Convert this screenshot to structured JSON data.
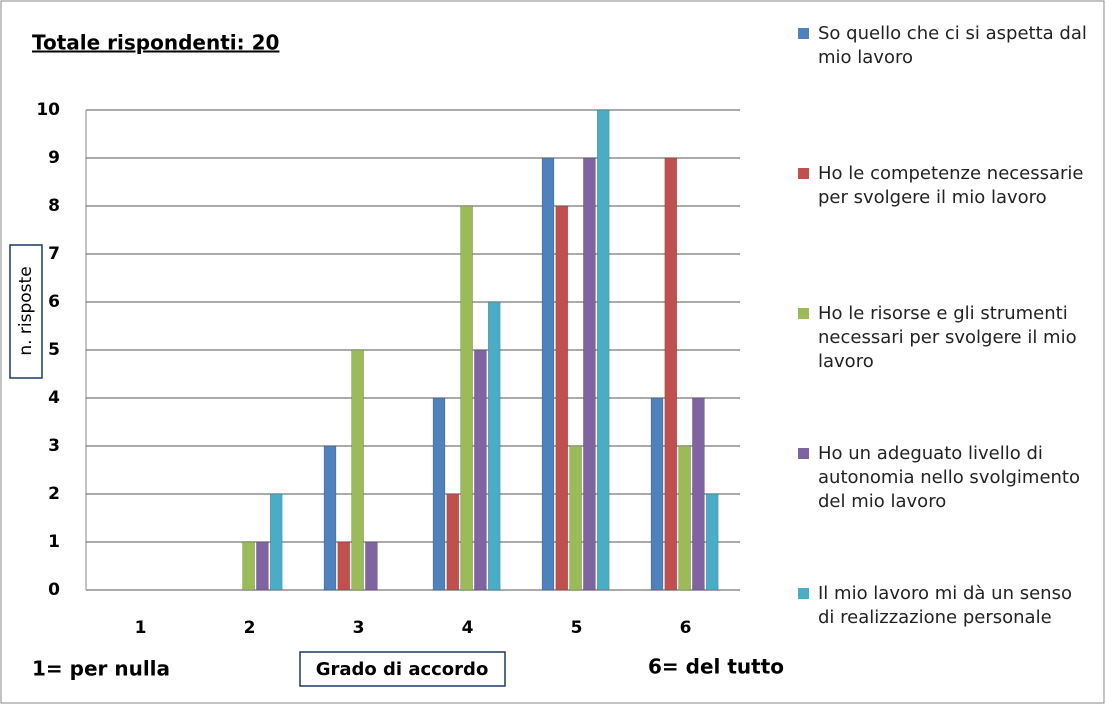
{
  "chart_data": {
    "type": "bar",
    "title": "Totale rispondenti: 20",
    "y_label": "n. risposte",
    "x_label": "Grado di accordo",
    "annotations": [
      "1= per nulla",
      "6= del tutto"
    ],
    "categories": [
      "1",
      "2",
      "3",
      "4",
      "5",
      "6"
    ],
    "series": [
      {
        "name": "So quello che ci si aspetta dal mio lavoro",
        "color": "#4f81bd",
        "values": [
          0,
          0,
          3,
          4,
          9,
          4
        ]
      },
      {
        "name": "Ho le competenze necessarie per svolgere il mio lavoro",
        "color": "#c0504d",
        "values": [
          0,
          0,
          1,
          2,
          8,
          9
        ]
      },
      {
        "name": "Ho le risorse e gli strumenti necessari per svolgere il mio lavoro",
        "color": "#9bbb59",
        "values": [
          0,
          1,
          5,
          8,
          3,
          3
        ]
      },
      {
        "name": "Ho un adeguato livello di autonomia nello svolgimento del mio lavoro",
        "color": "#8064a2",
        "values": [
          0,
          1,
          1,
          5,
          9,
          4
        ]
      },
      {
        "name": "Il mio lavoro mi dà un senso di realizzazione personale",
        "color": "#4bacc6",
        "values": [
          0,
          2,
          0,
          6,
          10,
          2
        ]
      }
    ],
    "ylim": [
      0,
      10
    ],
    "yticks": [
      0,
      1,
      2,
      3,
      4,
      5,
      6,
      7,
      8,
      9,
      10
    ],
    "grid": true,
    "legend": "right"
  }
}
